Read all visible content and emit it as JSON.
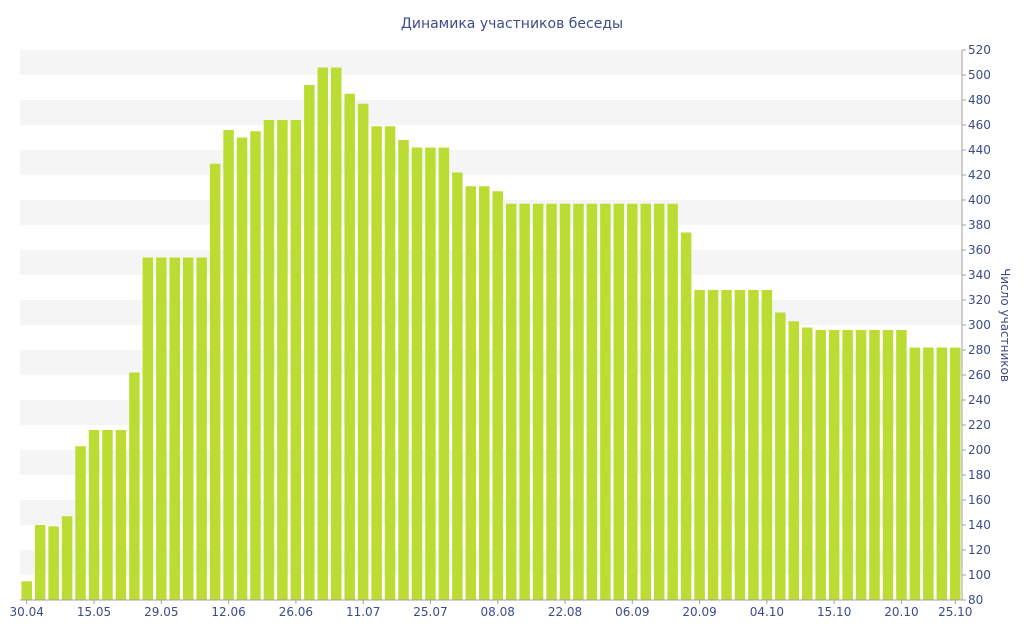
{
  "colors": {
    "bar": "#bbdd33",
    "band": "#f5f5f5",
    "axis": "#a0a0a0",
    "text": "#3d4c8a"
  },
  "chart_data": {
    "type": "bar",
    "title": "Динамика участников беседы",
    "ylabel": "Число участников",
    "xlabel": "",
    "ylim": [
      80,
      520
    ],
    "y_ticks": [
      80,
      100,
      120,
      140,
      160,
      180,
      200,
      220,
      240,
      260,
      280,
      300,
      320,
      340,
      360,
      380,
      400,
      420,
      440,
      460,
      480,
      500,
      520
    ],
    "x_tick_labels": [
      {
        "label": "30.04",
        "index": 0
      },
      {
        "label": "15.05",
        "index": 5
      },
      {
        "label": "29.05",
        "index": 10
      },
      {
        "label": "12.06",
        "index": 15
      },
      {
        "label": "26.06",
        "index": 20
      },
      {
        "label": "11.07",
        "index": 25
      },
      {
        "label": "25.07",
        "index": 30
      },
      {
        "label": "08.08",
        "index": 35
      },
      {
        "label": "22.08",
        "index": 40
      },
      {
        "label": "06.09",
        "index": 45
      },
      {
        "label": "20.09",
        "index": 50
      },
      {
        "label": "04.10",
        "index": 55
      },
      {
        "label": "15.10",
        "index": 60
      },
      {
        "label": "20.10",
        "index": 65
      },
      {
        "label": "25.10",
        "index": 69
      }
    ],
    "values": [
      95,
      140,
      139,
      147,
      203,
      216,
      216,
      216,
      262,
      354,
      354,
      354,
      354,
      354,
      429,
      456,
      450,
      455,
      464,
      464,
      464,
      492,
      506,
      506,
      485,
      477,
      459,
      459,
      448,
      442,
      442,
      442,
      422,
      411,
      411,
      407,
      397,
      397,
      397,
      397,
      397,
      397,
      397,
      397,
      397,
      397,
      397,
      397,
      397,
      374,
      328,
      328,
      328,
      328,
      328,
      328,
      310,
      303,
      298,
      296,
      296,
      296,
      296,
      296,
      296,
      296,
      282,
      282,
      282,
      282
    ]
  }
}
